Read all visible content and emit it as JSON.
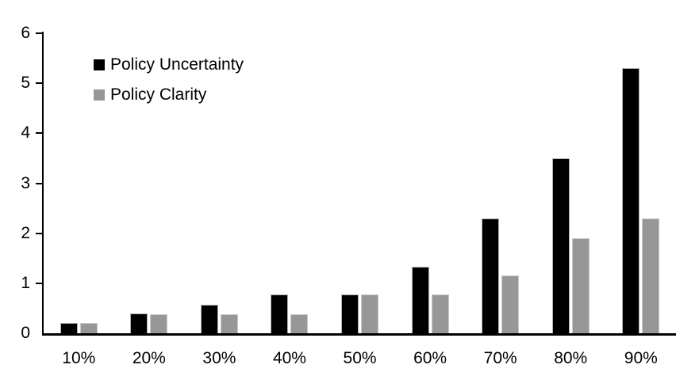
{
  "chart_data": {
    "type": "bar",
    "title": "",
    "xlabel": "",
    "ylabel": "",
    "categories": [
      "10%",
      "20%",
      "30%",
      "40%",
      "50%",
      "60%",
      "70%",
      "80%",
      "90%"
    ],
    "series": [
      {
        "name": "Policy Uncertainty",
        "color": "#000000",
        "border_color": "#b0b0b0",
        "values": [
          0.2,
          0.4,
          0.57,
          0.77,
          0.78,
          1.33,
          2.3,
          3.5,
          5.3
        ]
      },
      {
        "name": "Policy Clarity",
        "color": "#979797",
        "border_color": "#c9c9c9",
        "values": [
          0.2,
          0.38,
          0.38,
          0.38,
          0.77,
          0.77,
          1.15,
          1.9,
          2.3
        ]
      }
    ],
    "ylim": [
      0,
      6
    ],
    "yticks": [
      0,
      1,
      2,
      3,
      4,
      5,
      6
    ],
    "grid": false,
    "legend_position": "top-left-inside",
    "axis_color": "#000000",
    "background_color": "#ffffff"
  }
}
